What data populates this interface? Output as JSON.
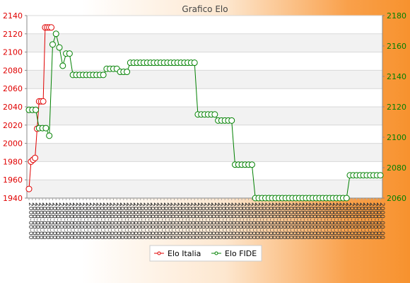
{
  "chart_data": {
    "type": "line",
    "title": "Grafico Elo",
    "grid": true,
    "legend_position": "bottom",
    "series": [
      {
        "name": "Elo Italia",
        "axis": "left",
        "color": "#e00000",
        "ylim": [
          1940,
          2140
        ],
        "yticks": [
          1940,
          1960,
          1980,
          2000,
          2020,
          2040,
          2060,
          2080,
          2100,
          2120,
          2140
        ],
        "values": [
          1950,
          1980,
          1982,
          1984,
          2016,
          2046,
          2046,
          2046,
          2127,
          2127,
          2127,
          2127
        ]
      },
      {
        "name": "Elo FIDE",
        "axis": "right",
        "color": "#008000",
        "ylim": [
          2060,
          2180
        ],
        "yticks": [
          2060,
          2080,
          2100,
          2120,
          2140,
          2160,
          2180
        ],
        "segments": [
          {
            "count": 3,
            "value": 2118
          },
          {
            "count": 3,
            "value": 2106
          },
          {
            "count": 1,
            "value": 2101
          },
          {
            "count": 1,
            "value": 2161
          },
          {
            "count": 1,
            "value": 2168
          },
          {
            "count": 1,
            "value": 2159
          },
          {
            "count": 1,
            "value": 2147
          },
          {
            "count": 2,
            "value": 2155
          },
          {
            "count": 10,
            "value": 2141
          },
          {
            "count": 4,
            "value": 2145
          },
          {
            "count": 3,
            "value": 2143
          },
          {
            "count": 20,
            "value": 2149
          },
          {
            "count": 6,
            "value": 2115
          },
          {
            "count": 5,
            "value": 2111
          },
          {
            "count": 6,
            "value": 2082
          },
          {
            "count": 28,
            "value": 2060
          },
          {
            "count": 10,
            "value": 2075
          }
        ]
      }
    ]
  }
}
